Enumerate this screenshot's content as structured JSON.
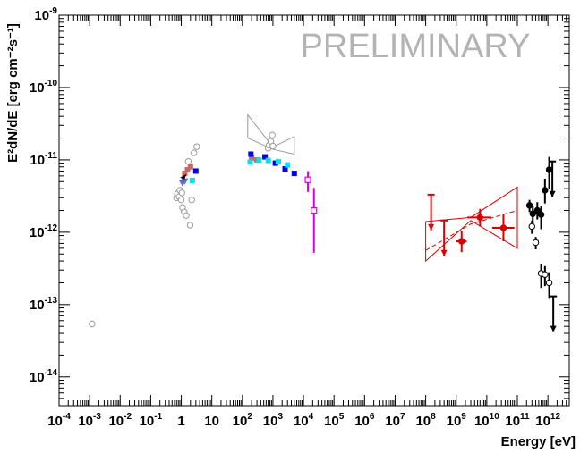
{
  "chart_data": {
    "type": "scatter",
    "title": "",
    "watermark": "PRELIMINARY",
    "xlabel": "Energy [eV]",
    "ylabel": "E²dN/dE [erg cm⁻²s⁻¹]",
    "x_scale": "log",
    "y_scale": "log",
    "xlim": [
      0.0001,
      5000000000000.0
    ],
    "ylim": [
      4e-15,
      1e-09
    ],
    "grid": false,
    "x_tick_labels": [
      {
        "base": "10",
        "exp": "-4",
        "value": 0.0001
      },
      {
        "base": "10",
        "exp": "-3",
        "value": 0.001
      },
      {
        "base": "10",
        "exp": "-2",
        "value": 0.01
      },
      {
        "base": "10",
        "exp": "-1",
        "value": 0.1
      },
      {
        "base": "1",
        "exp": "",
        "value": 1
      },
      {
        "base": "10",
        "exp": "",
        "value": 10
      },
      {
        "base": "10",
        "exp": "2",
        "value": 100
      },
      {
        "base": "10",
        "exp": "3",
        "value": 1000
      },
      {
        "base": "10",
        "exp": "4",
        "value": 10000
      },
      {
        "base": "10",
        "exp": "5",
        "value": 100000
      },
      {
        "base": "10",
        "exp": "6",
        "value": 1000000
      },
      {
        "base": "10",
        "exp": "7",
        "value": 10000000
      },
      {
        "base": "10",
        "exp": "8",
        "value": 100000000
      },
      {
        "base": "10",
        "exp": "9",
        "value": 1000000000
      },
      {
        "base": "10",
        "exp": "10",
        "value": 10000000000
      },
      {
        "base": "10",
        "exp": "11",
        "value": 100000000000
      },
      {
        "base": "10",
        "exp": "12",
        "value": 1000000000000
      }
    ],
    "y_tick_labels": [
      {
        "base": "10",
        "exp": "-9",
        "value": 1e-09
      },
      {
        "base": "10",
        "exp": "-10",
        "value": 1e-10
      },
      {
        "base": "10",
        "exp": "-11",
        "value": 1e-11
      },
      {
        "base": "10",
        "exp": "-12",
        "value": 1e-12
      },
      {
        "base": "10",
        "exp": "-13",
        "value": 1e-13
      },
      {
        "base": "10",
        "exp": "-14",
        "value": 1e-14
      }
    ],
    "series": [
      {
        "color": "#999999",
        "marker": "open-circle",
        "points": [
          {
            "x": 0.0012,
            "y": 5.4e-14
          },
          {
            "x": 0.7,
            "y": 3e-12
          },
          {
            "x": 0.75,
            "y": 3.4e-12
          },
          {
            "x": 0.85,
            "y": 3.1e-12
          },
          {
            "x": 0.9,
            "y": 3.8e-12
          },
          {
            "x": 1.0,
            "y": 2.8e-12
          },
          {
            "x": 1.05,
            "y": 3.5e-12
          },
          {
            "x": 1.1,
            "y": 2.2e-12
          },
          {
            "x": 1.25,
            "y": 1.9e-12
          },
          {
            "x": 1.45,
            "y": 1.7e-12
          },
          {
            "x": 1.7,
            "y": 9.5e-12
          },
          {
            "x": 1.95,
            "y": 1.25e-12
          },
          {
            "x": 2.2,
            "y": 2.8e-12
          },
          {
            "x": 2.6,
            "y": 1.25e-11
          },
          {
            "x": 3.2,
            "y": 1.52e-11
          },
          {
            "x": 700,
            "y": 1.45e-11
          },
          {
            "x": 750,
            "y": 1.6e-11
          },
          {
            "x": 850,
            "y": 1.8e-11
          },
          {
            "x": 950,
            "y": 2.2e-11
          },
          {
            "x": 1000,
            "y": 1.55e-11
          }
        ]
      },
      {
        "color": "#cc6666",
        "marker": "filled-square",
        "points": [
          {
            "x": 1.3,
            "y": 6.5e-12
          },
          {
            "x": 1.6,
            "y": 7.3e-12
          },
          {
            "x": 2.0,
            "y": 8e-12
          },
          {
            "x": 200,
            "y": 1.05e-11
          },
          {
            "x": 300,
            "y": 1e-11
          }
        ]
      },
      {
        "color": "#0000ee",
        "marker": "filled-square",
        "points": [
          {
            "x": 3.0,
            "y": 7e-12
          },
          {
            "x": 190,
            "y": 1.2e-11
          },
          {
            "x": 550,
            "y": 1.1e-11
          },
          {
            "x": 1200,
            "y": 9e-12
          },
          {
            "x": 2500,
            "y": 7.5e-12
          },
          {
            "x": 5000,
            "y": 6.5e-12
          }
        ]
      },
      {
        "color": "#00e5ee",
        "marker": "filled-square",
        "points": [
          {
            "x": 2.3,
            "y": 5.2e-12
          },
          {
            "x": 180,
            "y": 9.3e-12
          },
          {
            "x": 350,
            "y": 9.9e-12
          },
          {
            "x": 700,
            "y": 9.8e-12
          },
          {
            "x": 1500,
            "y": 9.4e-12
          },
          {
            "x": 3000,
            "y": 8.5e-12
          }
        ]
      },
      {
        "color": "#6666cc",
        "marker": "filled-triangle-down",
        "points": [
          {
            "x": 1.1,
            "y": 4.8e-12
          },
          {
            "x": 1.3,
            "y": 5.1e-12
          }
        ]
      },
      {
        "color": "#000000",
        "marker": "arrow-left",
        "points": [
          {
            "x": 1.2,
            "y": 6.2e-12
          }
        ]
      },
      {
        "color": "#dd00dd",
        "marker": "open-square",
        "points": [
          {
            "x": 14000,
            "y": 5.3e-12,
            "ylo": 3.6e-12,
            "yhi": 7e-12
          },
          {
            "x": 22000,
            "y": 2e-12,
            "ylo": 5.2e-13,
            "yhi": 4.1e-12
          }
        ]
      },
      {
        "color": "#dd0000",
        "marker": "filled-circle",
        "points": [
          {
            "x": 1500000000.0,
            "y": 7.5e-13,
            "ylo": 5.3e-13,
            "yhi": 1.05e-12,
            "xlo": 1000000000.0,
            "xhi": 2200000000.0
          },
          {
            "x": 6000000000.0,
            "y": 1.6e-12,
            "ylo": 1.2e-12,
            "yhi": 2.1e-12,
            "xlo": 2300000000.0,
            "xhi": 14000000000.0
          },
          {
            "x": 35000000000.0,
            "y": 1.15e-12,
            "ylo": 7.5e-13,
            "yhi": 1.8e-12,
            "xlo": 15000000000.0,
            "xhi": 80000000000.0
          }
        ]
      },
      {
        "color": "#dd0000",
        "marker": "upper-limit",
        "points": [
          {
            "x": 150000000.0,
            "y": 3.3e-12
          },
          {
            "x": 400000000.0,
            "y": 1.45e-12
          }
        ]
      },
      {
        "color": "#000000",
        "marker": "filled-circle",
        "points": [
          {
            "x": 250000000000.0,
            "y": 2.35e-12,
            "ylo": 1.9e-12,
            "yhi": 2.8e-12
          },
          {
            "x": 320000000000.0,
            "y": 1.8e-12,
            "ylo": 1.3e-12,
            "yhi": 2.3e-12
          },
          {
            "x": 450000000000.0,
            "y": 2e-12,
            "ylo": 1.5e-12,
            "yhi": 2.6e-12
          },
          {
            "x": 600000000000.0,
            "y": 1.75e-12,
            "ylo": 1.1e-12,
            "yhi": 2.3e-12
          },
          {
            "x": 800000000000.0,
            "y": 3.8e-12,
            "ylo": 2.5e-12,
            "yhi": 5.5e-12
          },
          {
            "x": 1100000000000.0,
            "y": 7.3e-12,
            "ylo": 4e-12,
            "yhi": 1.1e-11
          }
        ]
      },
      {
        "color": "#000000",
        "marker": "open-circle",
        "points": [
          {
            "x": 300000000000.0,
            "y": 1.2e-12,
            "ylo": 9.5e-13,
            "yhi": 1.45e-12
          },
          {
            "x": 400000000000.0,
            "y": 7.2e-13,
            "ylo": 5.8e-13,
            "yhi": 8.6e-13
          },
          {
            "x": 600000000000.0,
            "y": 2.7e-13,
            "ylo": 1.7e-13,
            "yhi": 3.6e-13
          },
          {
            "x": 800000000000.0,
            "y": 2.6e-13,
            "ylo": 1.8e-13,
            "yhi": 3.4e-13
          },
          {
            "x": 1100000000000.0,
            "y": 2e-13,
            "ylo": 1.2e-13,
            "yhi": 2.8e-13
          }
        ]
      },
      {
        "color": "#000000",
        "marker": "upper-limit",
        "points": [
          {
            "x": 1400000000000.0,
            "y": 9.5e-12
          },
          {
            "x": 1500000000000.0,
            "y": 1.3e-13
          }
        ]
      }
    ],
    "bowties": [
      {
        "color": "#999999",
        "upper": [
          [
            150,
            4.2e-11
          ],
          [
            1000,
            1.5e-11
          ],
          [
            5000,
            2.1e-11
          ]
        ],
        "lower": [
          [
            150,
            2e-11
          ],
          [
            1000,
            1.4e-11
          ],
          [
            5000,
            1.2e-11
          ]
        ]
      },
      {
        "color": "#dd0000",
        "upper": [
          [
            100000000.0,
            1.4e-12
          ],
          [
            3000000000.0,
            1.6e-12
          ],
          [
            100000000000.0,
            4.2e-12
          ]
        ],
        "lower": [
          [
            100000000.0,
            4e-13
          ],
          [
            3000000000.0,
            1.45e-12
          ],
          [
            100000000000.0,
            6e-13
          ]
        ]
      }
    ],
    "fit_lines": [
      {
        "color": "#dd0000",
        "style": "dashed",
        "points": [
          [
            100000000.0,
            5.6e-13
          ],
          [
            3000000000.0,
            1.3e-12
          ],
          [
            100000000000.0,
            2e-12
          ]
        ]
      }
    ]
  }
}
